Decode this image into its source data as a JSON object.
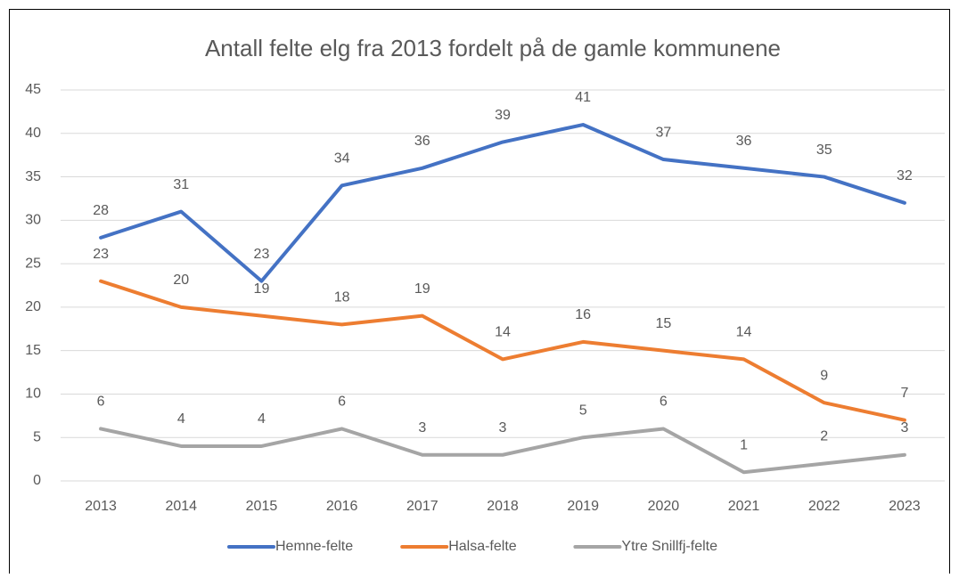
{
  "chart_data": {
    "type": "line",
    "title": "Antall felte elg fra 2013 fordelt på de gamle kommunene",
    "categories": [
      "2013",
      "2014",
      "2015",
      "2016",
      "2017",
      "2018",
      "2019",
      "2020",
      "2021",
      "2022",
      "2023"
    ],
    "series": [
      {
        "name": "Hemne-felte",
        "color": "#4472c4",
        "values": [
          28,
          31,
          23,
          34,
          36,
          39,
          41,
          37,
          36,
          35,
          32
        ]
      },
      {
        "name": "Halsa-felte",
        "color": "#ed7d31",
        "values": [
          23,
          20,
          19,
          18,
          19,
          14,
          16,
          15,
          14,
          9,
          7
        ]
      },
      {
        "name": "Ytre Snillfj-felte",
        "color": "#a5a5a5",
        "values": [
          6,
          4,
          4,
          6,
          3,
          3,
          5,
          6,
          1,
          2,
          3
        ]
      }
    ],
    "ylim": [
      0,
      45
    ],
    "yticks": [
      0,
      5,
      10,
      15,
      20,
      25,
      30,
      35,
      40,
      45
    ],
    "grid": true,
    "legend": "bottom",
    "data_labels": true
  }
}
